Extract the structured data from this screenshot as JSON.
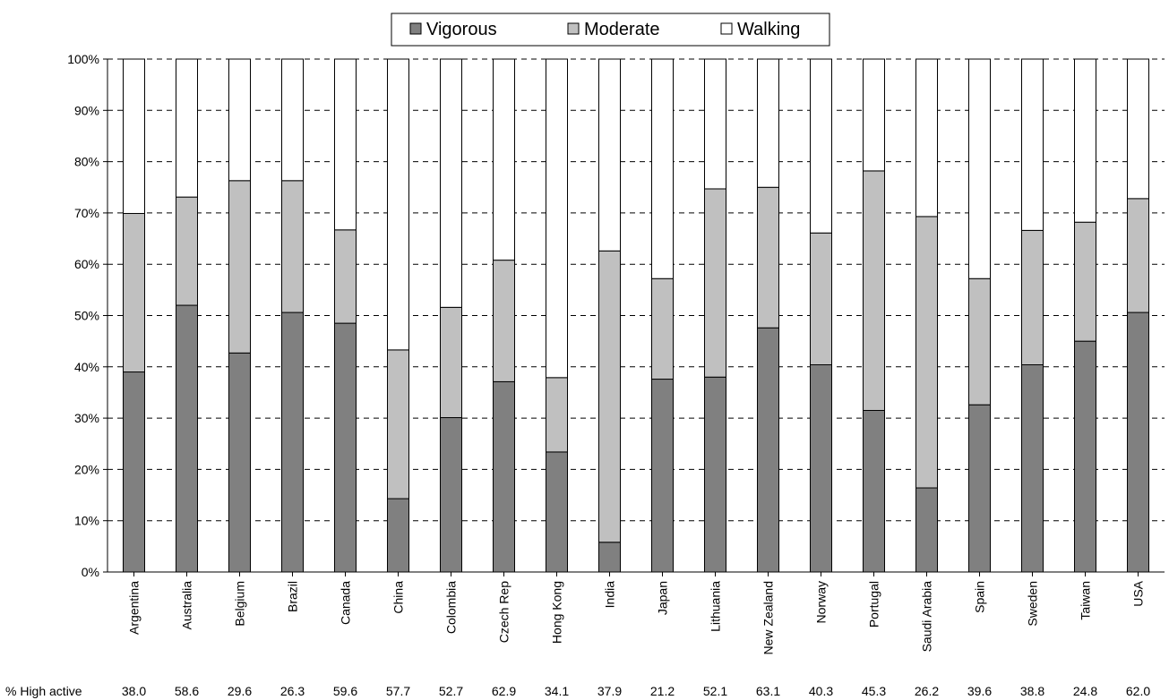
{
  "chart_data": {
    "type": "bar",
    "stacked": true,
    "percent_stacked": true,
    "title": "",
    "xlabel": "",
    "ylabel": "",
    "ylim": [
      0,
      100
    ],
    "yticks": [
      "0%",
      "10%",
      "20%",
      "30%",
      "40%",
      "50%",
      "60%",
      "70%",
      "80%",
      "90%",
      "100%"
    ],
    "grid": "horizontal dashed",
    "legend_position": "top-center",
    "categories": [
      "Argentina",
      "Australia",
      "Belgium",
      "Brazil",
      "Canada",
      "China",
      "Colombia",
      "Czech Rep",
      "Hong Kong",
      "India",
      "Japan",
      "Lithuania",
      "New Zealand",
      "Norway",
      "Portugal",
      "Saudi Arabia",
      "Spain",
      "Sweden",
      "Taiwan",
      "USA"
    ],
    "series": [
      {
        "name": "Vigorous",
        "color": "#808080",
        "values": [
          39,
          52,
          42.7,
          50.6,
          48.5,
          14.3,
          30.1,
          37.1,
          23.4,
          5.8,
          37.6,
          38,
          47.6,
          40.4,
          31.5,
          16.4,
          32.6,
          40.4,
          45,
          50.6
        ]
      },
      {
        "name": "Moderate",
        "color": "#c0c0c0",
        "values": [
          30.9,
          21.1,
          33.6,
          25.7,
          18.2,
          29,
          21.5,
          23.7,
          14.5,
          56.8,
          19.6,
          36.7,
          27.4,
          25.7,
          46.7,
          52.9,
          24.6,
          26.2,
          23.2,
          22.2
        ]
      },
      {
        "name": "Walking",
        "color": "#ffffff",
        "values": [
          30.1,
          26.9,
          23.7,
          23.7,
          33.3,
          56.7,
          48.4,
          39.2,
          62.1,
          37.4,
          42.8,
          25.3,
          25,
          33.9,
          21.8,
          30.7,
          42.8,
          33.4,
          31.8,
          27.2
        ]
      }
    ],
    "row_label": "% High active",
    "high_active": [
      "38.0",
      "58.6",
      "29.6",
      "26.3",
      "59.6",
      "57.7",
      "52.7",
      "62.9",
      "34.1",
      "37.9",
      "21.2",
      "52.1",
      "63.1",
      "40.3",
      "45.3",
      "26.2",
      "39.6",
      "38.8",
      "24.8",
      "62.0"
    ]
  }
}
